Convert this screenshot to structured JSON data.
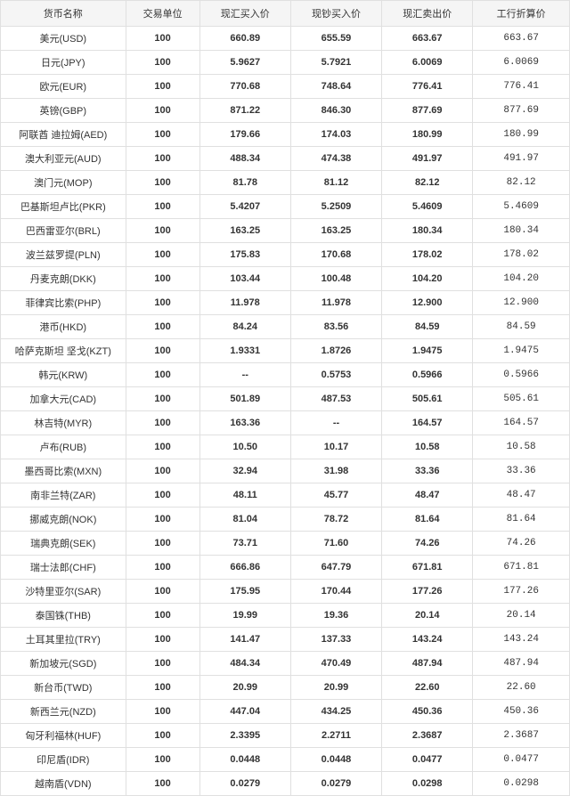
{
  "columns": [
    "货币名称",
    "交易单位",
    "现汇买入价",
    "现钞买入价",
    "现汇卖出价",
    "工行折算价"
  ],
  "rows": [
    {
      "name": "美元(USD)",
      "unit": "100",
      "buy1": "660.89",
      "buy2": "655.59",
      "sell": "663.67",
      "conv": "663.67"
    },
    {
      "name": "日元(JPY)",
      "unit": "100",
      "buy1": "5.9627",
      "buy2": "5.7921",
      "sell": "6.0069",
      "conv": "6.0069"
    },
    {
      "name": "欧元(EUR)",
      "unit": "100",
      "buy1": "770.68",
      "buy2": "748.64",
      "sell": "776.41",
      "conv": "776.41"
    },
    {
      "name": "英镑(GBP)",
      "unit": "100",
      "buy1": "871.22",
      "buy2": "846.30",
      "sell": "877.69",
      "conv": "877.69"
    },
    {
      "name": "阿联酋 迪拉姆(AED)",
      "unit": "100",
      "buy1": "179.66",
      "buy2": "174.03",
      "sell": "180.99",
      "conv": "180.99"
    },
    {
      "name": "澳大利亚元(AUD)",
      "unit": "100",
      "buy1": "488.34",
      "buy2": "474.38",
      "sell": "491.97",
      "conv": "491.97"
    },
    {
      "name": "澳门元(MOP)",
      "unit": "100",
      "buy1": "81.78",
      "buy2": "81.12",
      "sell": "82.12",
      "conv": "82.12"
    },
    {
      "name": "巴基斯坦卢比(PKR)",
      "unit": "100",
      "buy1": "5.4207",
      "buy2": "5.2509",
      "sell": "5.4609",
      "conv": "5.4609"
    },
    {
      "name": "巴西雷亚尔(BRL)",
      "unit": "100",
      "buy1": "163.25",
      "buy2": "163.25",
      "sell": "180.34",
      "conv": "180.34"
    },
    {
      "name": "波兰兹罗提(PLN)",
      "unit": "100",
      "buy1": "175.83",
      "buy2": "170.68",
      "sell": "178.02",
      "conv": "178.02"
    },
    {
      "name": "丹麦克朗(DKK)",
      "unit": "100",
      "buy1": "103.44",
      "buy2": "100.48",
      "sell": "104.20",
      "conv": "104.20"
    },
    {
      "name": "菲律宾比索(PHP)",
      "unit": "100",
      "buy1": "11.978",
      "buy2": "11.978",
      "sell": "12.900",
      "conv": "12.900"
    },
    {
      "name": "港币(HKD)",
      "unit": "100",
      "buy1": "84.24",
      "buy2": "83.56",
      "sell": "84.59",
      "conv": "84.59"
    },
    {
      "name": "哈萨克斯坦 坚戈(KZT)",
      "unit": "100",
      "buy1": "1.9331",
      "buy2": "1.8726",
      "sell": "1.9475",
      "conv": "1.9475"
    },
    {
      "name": "韩元(KRW)",
      "unit": "100",
      "buy1": "--",
      "buy2": "0.5753",
      "sell": "0.5966",
      "conv": "0.5966"
    },
    {
      "name": "加拿大元(CAD)",
      "unit": "100",
      "buy1": "501.89",
      "buy2": "487.53",
      "sell": "505.61",
      "conv": "505.61"
    },
    {
      "name": "林吉特(MYR)",
      "unit": "100",
      "buy1": "163.36",
      "buy2": "--",
      "sell": "164.57",
      "conv": "164.57"
    },
    {
      "name": "卢布(RUB)",
      "unit": "100",
      "buy1": "10.50",
      "buy2": "10.17",
      "sell": "10.58",
      "conv": "10.58"
    },
    {
      "name": "墨西哥比索(MXN)",
      "unit": "100",
      "buy1": "32.94",
      "buy2": "31.98",
      "sell": "33.36",
      "conv": "33.36"
    },
    {
      "name": "南非兰特(ZAR)",
      "unit": "100",
      "buy1": "48.11",
      "buy2": "45.77",
      "sell": "48.47",
      "conv": "48.47"
    },
    {
      "name": "挪威克朗(NOK)",
      "unit": "100",
      "buy1": "81.04",
      "buy2": "78.72",
      "sell": "81.64",
      "conv": "81.64"
    },
    {
      "name": "瑞典克朗(SEK)",
      "unit": "100",
      "buy1": "73.71",
      "buy2": "71.60",
      "sell": "74.26",
      "conv": "74.26"
    },
    {
      "name": "瑞士法郎(CHF)",
      "unit": "100",
      "buy1": "666.86",
      "buy2": "647.79",
      "sell": "671.81",
      "conv": "671.81"
    },
    {
      "name": "沙特里亚尔(SAR)",
      "unit": "100",
      "buy1": "175.95",
      "buy2": "170.44",
      "sell": "177.26",
      "conv": "177.26"
    },
    {
      "name": "泰国铢(THB)",
      "unit": "100",
      "buy1": "19.99",
      "buy2": "19.36",
      "sell": "20.14",
      "conv": "20.14"
    },
    {
      "name": "土耳其里拉(TRY)",
      "unit": "100",
      "buy1": "141.47",
      "buy2": "137.33",
      "sell": "143.24",
      "conv": "143.24"
    },
    {
      "name": "新加坡元(SGD)",
      "unit": "100",
      "buy1": "484.34",
      "buy2": "470.49",
      "sell": "487.94",
      "conv": "487.94"
    },
    {
      "name": "新台币(TWD)",
      "unit": "100",
      "buy1": "20.99",
      "buy2": "20.99",
      "sell": "22.60",
      "conv": "22.60"
    },
    {
      "name": "新西兰元(NZD)",
      "unit": "100",
      "buy1": "447.04",
      "buy2": "434.25",
      "sell": "450.36",
      "conv": "450.36"
    },
    {
      "name": "匈牙利福林(HUF)",
      "unit": "100",
      "buy1": "2.3395",
      "buy2": "2.2711",
      "sell": "2.3687",
      "conv": "2.3687"
    },
    {
      "name": "印尼盾(IDR)",
      "unit": "100",
      "buy1": "0.0448",
      "buy2": "0.0448",
      "sell": "0.0477",
      "conv": "0.0477"
    },
    {
      "name": "越南盾(VDN)",
      "unit": "100",
      "buy1": "0.0279",
      "buy2": "0.0279",
      "sell": "0.0298",
      "conv": "0.0298"
    }
  ],
  "style": {
    "header_bg": "#f5f5f5",
    "border_color": "#e0e0e0",
    "text_color": "#333333",
    "font_size": 11
  }
}
